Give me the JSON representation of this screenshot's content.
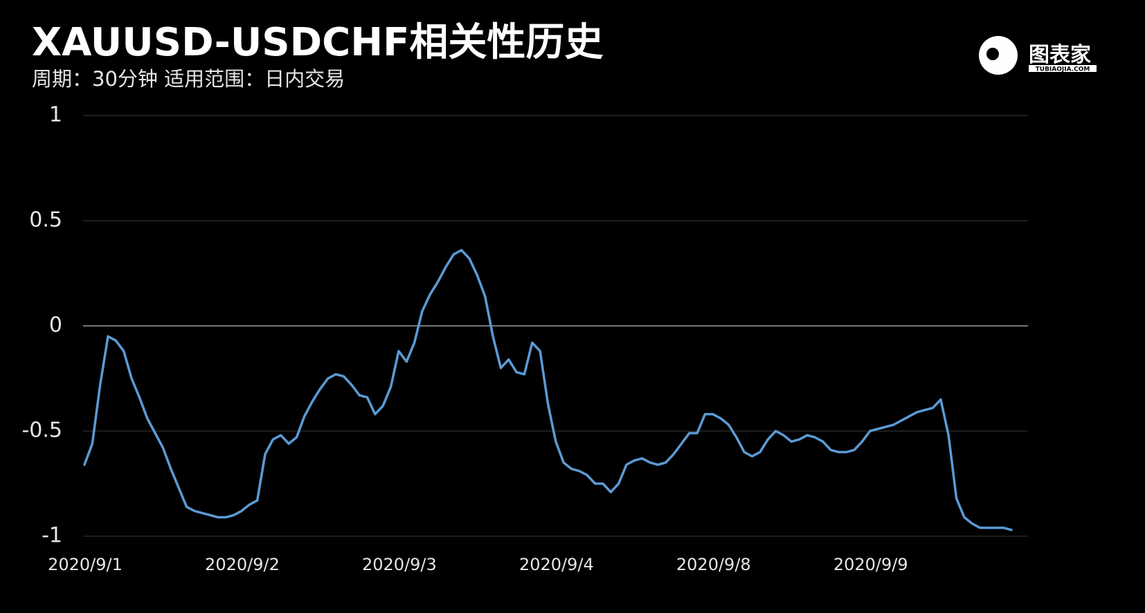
{
  "chart_data": {
    "type": "line",
    "title": "XAUUSD-USDCHF相关性历史",
    "subtitle": "周期：30分钟  适用范围：日内交易",
    "brand": "图表家",
    "brand_sub": "TUBIAOJIA.COM",
    "categories": [
      "2020/9/1",
      null,
      null,
      null,
      null,
      null,
      null,
      null,
      null,
      null,
      null,
      null,
      null,
      null,
      null,
      null,
      null,
      null,
      null,
      null,
      "2020/9/2",
      null,
      null,
      null,
      null,
      null,
      null,
      null,
      null,
      null,
      null,
      null,
      null,
      null,
      null,
      null,
      null,
      null,
      null,
      null,
      "2020/9/3",
      null,
      null,
      null,
      null,
      null,
      null,
      null,
      null,
      null,
      null,
      null,
      null,
      null,
      null,
      null,
      null,
      null,
      null,
      null,
      "2020/9/4",
      null,
      null,
      null,
      null,
      null,
      null,
      null,
      null,
      null,
      null,
      null,
      null,
      null,
      null,
      null,
      null,
      null,
      null,
      null,
      "2020/9/8",
      null,
      null,
      null,
      null,
      null,
      null,
      null,
      null,
      null,
      null,
      null,
      null,
      null,
      null,
      null,
      null,
      null,
      null,
      null,
      "2020/9/9",
      null,
      null,
      null,
      null,
      null,
      null,
      null,
      null,
      null,
      null,
      null,
      null,
      null,
      null,
      null,
      null,
      null,
      null
    ],
    "series": [
      {
        "name": "XAUUSD-USDCHF",
        "color": "#5b9bd5",
        "values": [
          -0.66,
          -0.56,
          -0.28,
          -0.05,
          -0.07,
          -0.12,
          -0.25,
          -0.34,
          -0.44,
          -0.51,
          -0.58,
          -0.68,
          -0.77,
          -0.86,
          -0.88,
          -0.89,
          -0.9,
          -0.91,
          -0.91,
          -0.9,
          -0.88,
          -0.85,
          -0.83,
          -0.61,
          -0.54,
          -0.52,
          -0.56,
          -0.53,
          -0.43,
          -0.36,
          -0.3,
          -0.25,
          -0.23,
          -0.24,
          -0.28,
          -0.33,
          -0.34,
          -0.42,
          -0.38,
          -0.29,
          -0.12,
          -0.17,
          -0.08,
          0.07,
          0.15,
          0.21,
          0.28,
          0.34,
          0.36,
          0.32,
          0.24,
          0.14,
          -0.05,
          -0.2,
          -0.16,
          -0.22,
          -0.23,
          -0.08,
          -0.12,
          -0.37,
          -0.55,
          -0.65,
          -0.68,
          -0.69,
          -0.71,
          -0.75,
          -0.75,
          -0.79,
          -0.75,
          -0.66,
          -0.64,
          -0.63,
          -0.65,
          -0.66,
          -0.65,
          -0.61,
          -0.56,
          -0.51,
          -0.51,
          -0.42,
          -0.42,
          -0.44,
          -0.47,
          -0.53,
          -0.6,
          -0.62,
          -0.6,
          -0.54,
          -0.5,
          -0.52,
          -0.55,
          -0.54,
          -0.52,
          -0.53,
          -0.55,
          -0.59,
          -0.6,
          -0.6,
          -0.59,
          -0.55,
          -0.5,
          -0.49,
          -0.48,
          -0.47,
          -0.45,
          -0.43,
          -0.41,
          -0.4,
          -0.39,
          -0.35,
          -0.52,
          -0.82,
          -0.91,
          -0.94,
          -0.96,
          -0.96,
          -0.96,
          -0.96,
          -0.97
        ]
      }
    ],
    "ylim": [
      -1,
      1
    ],
    "yticks": [
      -1,
      -0.5,
      0,
      0.5,
      1
    ],
    "grid": true
  }
}
